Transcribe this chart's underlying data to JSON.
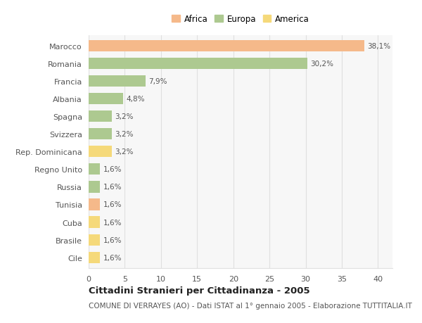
{
  "categories": [
    "Marocco",
    "Romania",
    "Francia",
    "Albania",
    "Spagna",
    "Svizzera",
    "Rep. Dominicana",
    "Regno Unito",
    "Russia",
    "Tunisia",
    "Cuba",
    "Brasile",
    "Cile"
  ],
  "values": [
    38.1,
    30.2,
    7.9,
    4.8,
    3.2,
    3.2,
    3.2,
    1.6,
    1.6,
    1.6,
    1.6,
    1.6,
    1.6
  ],
  "labels": [
    "38,1%",
    "30,2%",
    "7,9%",
    "4,8%",
    "3,2%",
    "3,2%",
    "3,2%",
    "1,6%",
    "1,6%",
    "1,6%",
    "1,6%",
    "1,6%",
    "1,6%"
  ],
  "colors": [
    "#f5b98a",
    "#adc990",
    "#adc990",
    "#adc990",
    "#adc990",
    "#adc990",
    "#f5d97a",
    "#adc990",
    "#adc990",
    "#f5b98a",
    "#f5d97a",
    "#f5d97a",
    "#f5d97a"
  ],
  "legend_labels": [
    "Africa",
    "Europa",
    "America"
  ],
  "legend_colors": [
    "#f5b98a",
    "#adc990",
    "#f5d97a"
  ],
  "title": "Cittadini Stranieri per Cittadinanza - 2005",
  "subtitle": "COMUNE DI VERRAYES (AO) - Dati ISTAT al 1° gennaio 2005 - Elaborazione TUTTITALIA.IT",
  "xlim": [
    0,
    42
  ],
  "xticks": [
    0,
    5,
    10,
    15,
    20,
    25,
    30,
    35,
    40
  ],
  "bg_color": "#ffffff",
  "plot_bg_color": "#f7f7f7",
  "grid_color": "#e0e0e0",
  "bar_height": 0.65,
  "label_fontsize": 7.5,
  "tick_fontsize": 8,
  "ytick_fontsize": 8,
  "title_fontsize": 9.5,
  "subtitle_fontsize": 7.5,
  "text_color": "#555555",
  "title_color": "#222222"
}
